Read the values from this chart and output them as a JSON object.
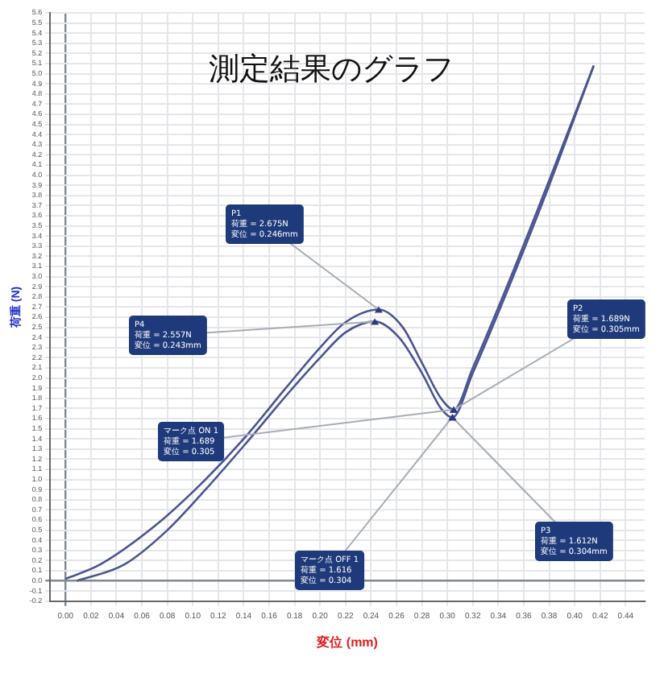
{
  "chart_data": {
    "type": "line",
    "title": "測定結果のグラフ",
    "xlabel": "変位 (mm)",
    "ylabel": "荷重 (N)",
    "xlim": [
      -0.012,
      0.455
    ],
    "ylim": [
      -0.2,
      5.6
    ],
    "xticks": [
      {
        "value": 0,
        "label": "0.00"
      },
      0.02,
      0.04,
      0.06,
      0.08,
      {
        "value": 0.1,
        "label": "0.10"
      },
      0.12,
      0.14,
      0.16,
      0.18,
      {
        "value": 0.2,
        "label": "0.20"
      },
      0.22,
      0.24,
      0.26,
      0.28,
      {
        "value": 0.3,
        "label": "0.30"
      },
      0.32,
      0.34,
      0.36,
      0.38,
      {
        "value": 0.4,
        "label": "0.40"
      },
      0.42,
      0.44
    ],
    "yticks": [
      -0.2,
      -0.1,
      {
        "value": 0,
        "label": "0.0"
      },
      0.1,
      0.2,
      0.3,
      0.4,
      0.5,
      0.6,
      0.7,
      0.8,
      0.9,
      {
        "value": 1,
        "label": "1.0"
      },
      1.1,
      1.2,
      1.3,
      1.4,
      1.5,
      1.6,
      1.7,
      1.8,
      1.9,
      {
        "value": 2,
        "label": "2.0"
      },
      2.1,
      2.2,
      2.3,
      2.4,
      2.5,
      2.6,
      2.7,
      2.8,
      2.9,
      {
        "value": 3,
        "label": "3.0"
      },
      3.1,
      3.2,
      3.3,
      3.4,
      3.5,
      3.6,
      3.7,
      3.8,
      3.9,
      {
        "value": 4,
        "label": "4.0"
      },
      4.1,
      4.2,
      4.3,
      4.4,
      4.5,
      4.6,
      4.7,
      4.8,
      4.9,
      {
        "value": 5,
        "label": "5.0"
      },
      5.1,
      5.2,
      5.3,
      5.4,
      5.5,
      5.6
    ],
    "grid": true,
    "legend": false,
    "marker": "none",
    "line_style": "solid",
    "series": [
      {
        "color": "#4a5590",
        "x": [
          0,
          0.027,
          0.07,
          0.106,
          0.14,
          0.173,
          0.2,
          0.22,
          0.246,
          0.265,
          0.28,
          0.295,
          0.305,
          0.32,
          0.35,
          0.38,
          0.415
        ],
        "values": [
          0.02,
          0.16,
          0.54,
          0.95,
          1.4,
          1.9,
          2.3,
          2.55,
          2.675,
          2.5,
          2.15,
          1.8,
          1.689,
          2.1,
          3.0,
          3.95,
          5.08
        ]
      },
      {
        "color": "#4a5590",
        "x": [
          0.009,
          0.046,
          0.08,
          0.11,
          0.14,
          0.175,
          0.2,
          0.22,
          0.243,
          0.262,
          0.28,
          0.295,
          0.304,
          0.32,
          0.35,
          0.38,
          0.415
        ],
        "values": [
          0,
          0.16,
          0.5,
          0.9,
          1.33,
          1.85,
          2.2,
          2.45,
          2.557,
          2.4,
          2.05,
          1.7,
          1.612,
          2.05,
          2.95,
          3.9,
          5.08
        ]
      }
    ],
    "annotations": [
      {
        "text": "P1\n荷重 = 2.675N\n変位 = 0.246mm",
        "x": 0.246,
        "y": 2.675
      },
      {
        "text": "P4\n荷重 = 2.557N\n変位 = 0.243mm",
        "x": 0.243,
        "y": 2.557
      },
      {
        "text": "マーク点 ON 1\n荷重 = 1.689\n変位 = 0.305",
        "x": 0.305,
        "y": 1.689
      },
      {
        "text": "マーク点 OFF 1\n荷重 = 1.616\n変位 = 0.304",
        "x": 0.304,
        "y": 1.616
      },
      {
        "text": "P2\n荷重 = 1.689N\n変位 = 0.305mm",
        "x": 0.305,
        "y": 1.689
      },
      {
        "text": "P3\n荷重 = 1.612N\n変位 = 0.304mm",
        "x": 0.304,
        "y": 1.612
      }
    ]
  }
}
